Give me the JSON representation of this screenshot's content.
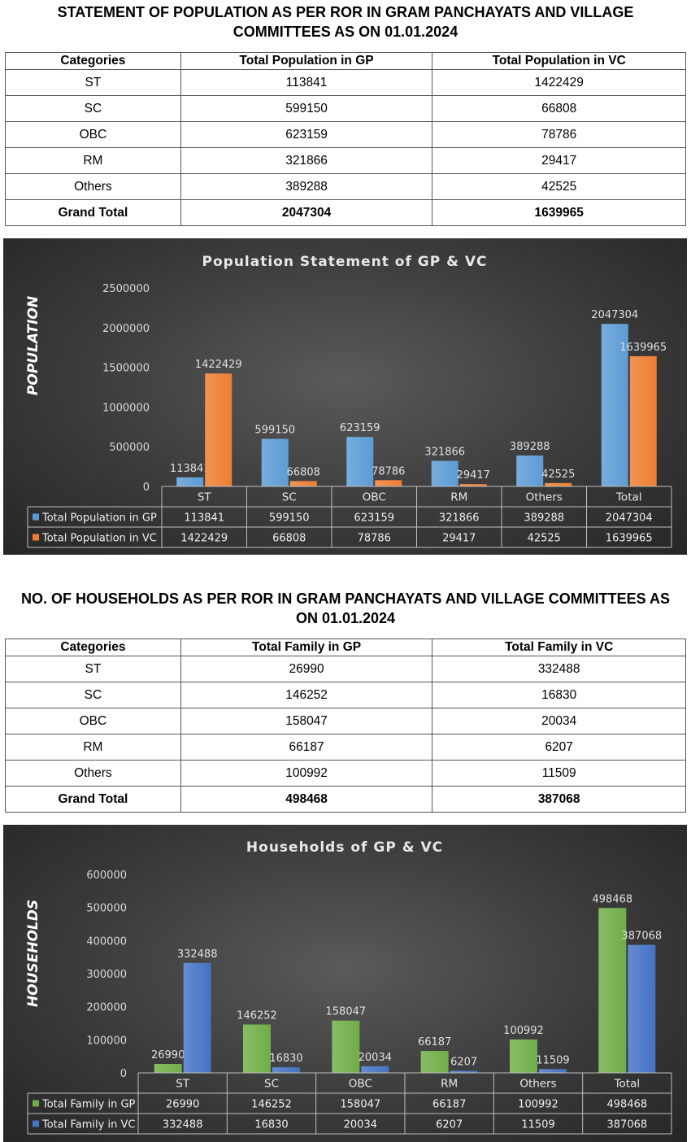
{
  "population": {
    "title": "STATEMENT OF POPULATION AS PER ROR IN GRAM PANCHAYATS AND VILLAGE COMMITTEES AS ON 01.01.2024",
    "columns": [
      "Categories",
      "Total Population in GP",
      "Total Population in VC"
    ],
    "rows": [
      [
        "ST",
        "113841",
        "1422429"
      ],
      [
        "SC",
        "599150",
        "66808"
      ],
      [
        "OBC",
        "623159",
        "78786"
      ],
      [
        "RM",
        "321866",
        "29417"
      ],
      [
        "Others",
        "389288",
        "42525"
      ]
    ],
    "total": [
      "Grand Total",
      "2047304",
      "1639965"
    ]
  },
  "households": {
    "title": "NO. OF HOUSEHOLDS AS PER ROR IN GRAM PANCHAYATS AND VILLAGE COMMITTEES AS ON 01.01.2024",
    "columns": [
      "Categories",
      "Total Family in GP",
      "Total Family in VC"
    ],
    "rows": [
      [
        "ST",
        "26990",
        "332488"
      ],
      [
        "SC",
        "146252",
        "16830"
      ],
      [
        "OBC",
        "158047",
        "20034"
      ],
      [
        "RM",
        "66187",
        "6207"
      ],
      [
        "Others",
        "100992",
        "11509"
      ]
    ],
    "total": [
      "Grand Total",
      "498468",
      "387068"
    ]
  },
  "chart_data": [
    {
      "type": "bar",
      "title": "Population Statement of GP & VC",
      "ylabel": "POPULATION",
      "xlabel": "",
      "categories": [
        "ST",
        "SC",
        "OBC",
        "RM",
        "Others",
        "Total"
      ],
      "yticks": [
        0,
        500000,
        1000000,
        1500000,
        2000000,
        2500000
      ],
      "ylim": [
        0,
        2500000
      ],
      "series": [
        {
          "name": "Total Population in GP",
          "color": "#5b9bd5",
          "values": [
            113841,
            599150,
            623159,
            321866,
            389288,
            2047304
          ]
        },
        {
          "name": "Total Population in VC",
          "color": "#ed7d31",
          "values": [
            1422429,
            66808,
            78786,
            29417,
            42525,
            1639965
          ]
        }
      ],
      "legend": "data-table"
    },
    {
      "type": "bar",
      "title": "Households of GP & VC",
      "ylabel": "HOUSEHOLDS",
      "xlabel": "",
      "categories": [
        "ST",
        "SC",
        "OBC",
        "RM",
        "Others",
        "Total"
      ],
      "yticks": [
        0,
        100000,
        200000,
        300000,
        400000,
        500000,
        600000
      ],
      "ylim": [
        0,
        600000
      ],
      "series": [
        {
          "name": "Total Family in GP",
          "color": "#70ad47",
          "values": [
            26990,
            146252,
            158047,
            66187,
            100992,
            498468
          ]
        },
        {
          "name": "Total Family in VC",
          "color": "#4472c4",
          "values": [
            332488,
            16830,
            20034,
            6207,
            11509,
            387068
          ]
        }
      ],
      "legend": "data-table"
    }
  ]
}
